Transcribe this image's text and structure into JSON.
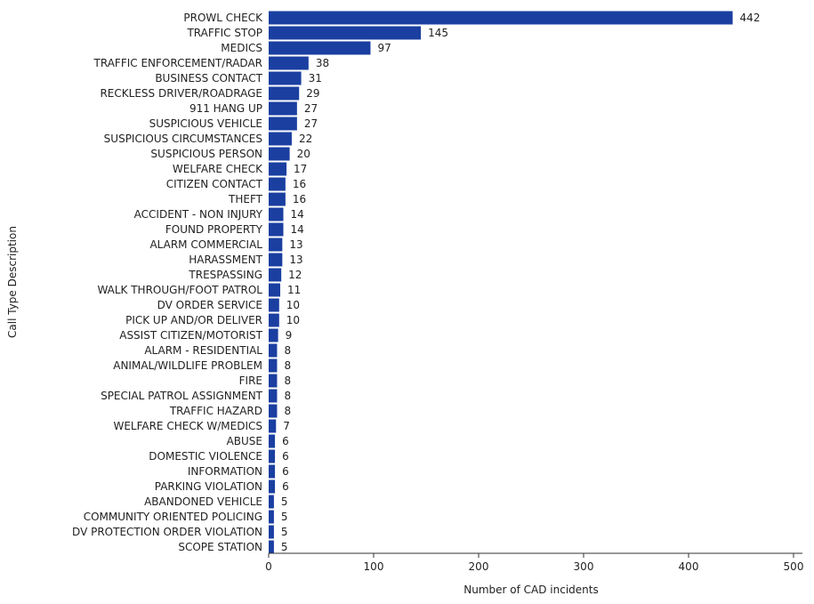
{
  "chart_data": {
    "type": "bar",
    "orientation": "horizontal",
    "title": "",
    "xlabel": "Number of CAD incidents",
    "ylabel": "Call Type Description",
    "xlim": [
      0,
      500
    ],
    "x_ticks": [
      0,
      100,
      200,
      300,
      400,
      500
    ],
    "grid": false,
    "bar_color": "#1a3fa0",
    "categories": [
      "PROWL CHECK",
      "TRAFFIC STOP",
      "MEDICS",
      "TRAFFIC ENFORCEMENT/RADAR",
      "BUSINESS CONTACT",
      "RECKLESS DRIVER/ROADRAGE",
      "911 HANG UP",
      "SUSPICIOUS VEHICLE",
      "SUSPICIOUS CIRCUMSTANCES",
      "SUSPICIOUS PERSON",
      "WELFARE CHECK",
      "CITIZEN CONTACT",
      "THEFT",
      "ACCIDENT - NON INJURY",
      "FOUND PROPERTY",
      "ALARM COMMERCIAL",
      "HARASSMENT",
      "TRESPASSING",
      "WALK THROUGH/FOOT PATROL",
      "DV ORDER SERVICE",
      "PICK UP AND/OR DELIVER",
      "ASSIST CITIZEN/MOTORIST",
      "ALARM - RESIDENTIAL",
      "ANIMAL/WILDLIFE PROBLEM",
      "FIRE",
      "SPECIAL PATROL ASSIGNMENT",
      "TRAFFIC HAZARD",
      "WELFARE CHECK W/MEDICS",
      "ABUSE",
      "DOMESTIC VIOLENCE",
      "INFORMATION",
      "PARKING VIOLATION",
      "ABANDONED VEHICLE",
      "COMMUNITY ORIENTED POLICING",
      "DV PROTECTION ORDER VIOLATION",
      "SCOPE STATION"
    ],
    "values": [
      442,
      145,
      97,
      38,
      31,
      29,
      27,
      27,
      22,
      20,
      17,
      16,
      16,
      14,
      14,
      13,
      13,
      12,
      11,
      10,
      10,
      9,
      8,
      8,
      8,
      8,
      8,
      7,
      6,
      6,
      6,
      6,
      5,
      5,
      5,
      5
    ]
  }
}
